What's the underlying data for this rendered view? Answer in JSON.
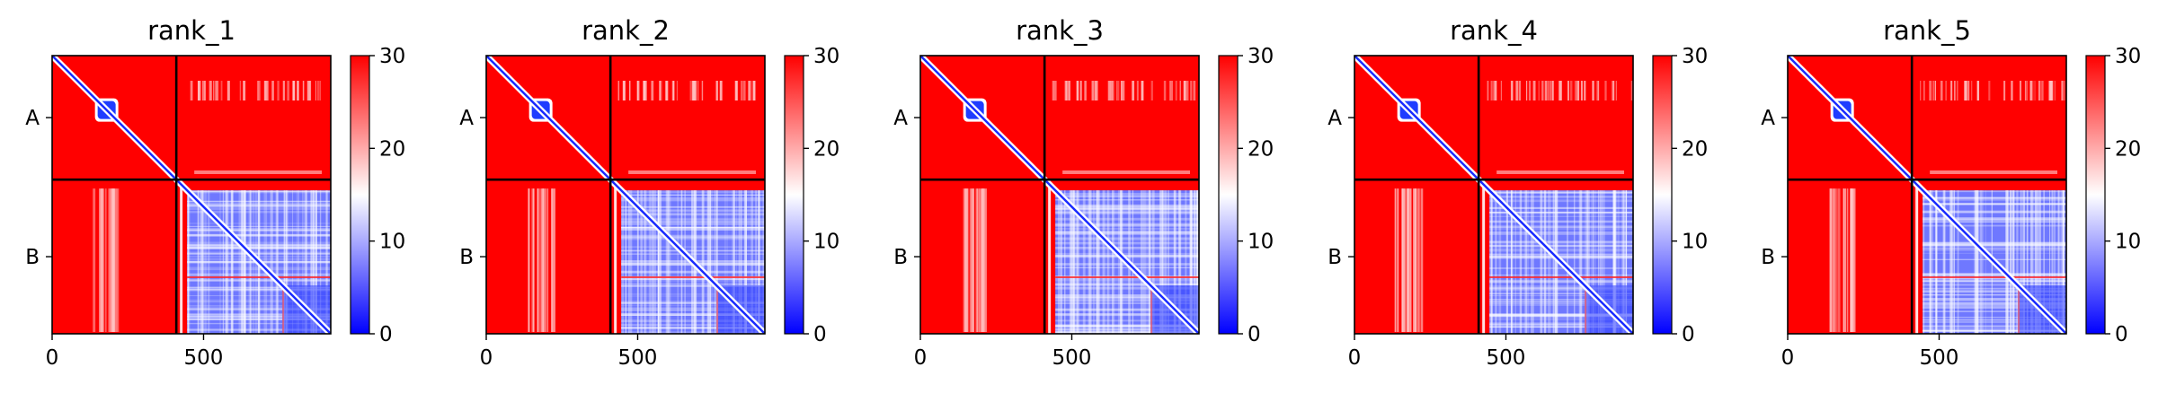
{
  "chart_data": {
    "type": "heatmap",
    "colormap": {
      "name": "bwr",
      "colors": [
        "#0000ff",
        "#ffffff",
        "#ff0000"
      ],
      "range": [
        0,
        30
      ],
      "ticks": [
        0,
        10,
        20,
        30
      ]
    },
    "row_labels": [
      "A",
      "B"
    ],
    "x_ticks": [
      0,
      500
    ],
    "residue_count": 920,
    "chain_boundary": 410,
    "panels": [
      {
        "title": "rank_1"
      },
      {
        "title": "rank_2"
      },
      {
        "title": "rank_3"
      },
      {
        "title": "rank_4"
      },
      {
        "title": "rank_5"
      }
    ]
  }
}
